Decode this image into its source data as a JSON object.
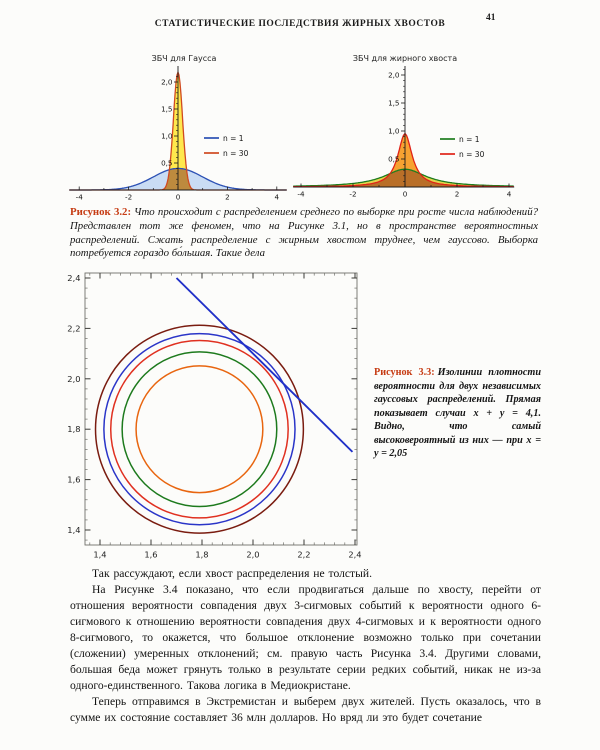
{
  "page": {
    "header": "СТАТИСТИЧЕСКИЕ ПОСЛЕДСТВИЯ ЖИРНЫХ ХВОСТОВ",
    "page_number": "41"
  },
  "accent_color": "#c63c14",
  "fig32": {
    "label": "Рисунок 3.2:",
    "caption": "Что происходит с распределением среднего по выборке при росте числа наблюдений? Представлен тот же феномен, что на Рисунке 3.1, но в пространстве вероятностных распределений. Сжать распределение с жирным хвостом труднее, чем гауссово. Выборка потребуется гораздо бо́льшая. Такие дела"
  },
  "fig33": {
    "label": "Рисунок 3.3:",
    "caption": "Изолинии плотности вероятности для двух независимых гауссовых распределений. Прямая показывает случаи x + y = 4,1. Видно, что самый высоковероятный из них — при x = y = 2,05"
  },
  "body": {
    "p1": "Так рассуждают, если хвост распределения не толстый.",
    "p2": "На Рисунке 3.4 показано, что если продвигаться дальше по хвосту, перейти от отношения вероятности совпадения двух 3-сигмовых событий к вероятности одного 6-сигмового к отношению вероятности совпадения двух 4-сигмовых и к вероятности одного 8-сигмового, то окажется, что большое отклонение возможно только при сочетании (сложении) умеренных отклонений; см. правую часть Рисунка 3.4. Другими словами, большая беда может грянуть только в результате серии редких событий, никак не из-за одного-единственного. Такова логика в Медиокристане.",
    "p3": "Теперь отправимся в Экстремистан и выберем двух жителей. Пусть оказалось, что в сумме их состояние составляет 36 млн долларов. Но вряд ли это будет сочетание"
  },
  "chart_data": [
    {
      "id": "gauss",
      "type": "area",
      "title": "ЗБЧ для Гаусса",
      "xlabel": "",
      "ylabel": "",
      "xlim": [
        -4.4,
        4.4
      ],
      "ylim": [
        0,
        2.3
      ],
      "x_ticks": [
        -4,
        -2,
        0,
        2,
        4
      ],
      "x_tick_labels": [
        "-4",
        "-2",
        "0",
        "2",
        "4"
      ],
      "y_ticks": [
        0.5,
        1.0,
        1.5,
        2.0
      ],
      "y_tick_labels": [
        "0,5",
        "1,0",
        "1,5",
        "2,0"
      ],
      "legend_position": "right",
      "series": [
        {
          "name": "n = 1",
          "shape": "gauss",
          "width": 1.0,
          "peak": 0.4,
          "color": "#2b50b4",
          "fill": "#c9dcf4"
        },
        {
          "name": "n = 30",
          "shape": "gauss",
          "width": 0.185,
          "peak": 2.18,
          "color": "#d04a20",
          "fill": "#ffe84d"
        }
      ],
      "overlap_fill": "#bd8a3e"
    },
    {
      "id": "fat-tail",
      "type": "area",
      "title": "ЗБЧ для жирного хвоста",
      "xlabel": "",
      "ylabel": "",
      "xlim": [
        -4.3,
        4.2
      ],
      "ylim": [
        0,
        2.2
      ],
      "x_ticks": [
        -4,
        -2,
        0,
        2,
        4
      ],
      "x_tick_labels": [
        "-4",
        "-2",
        "0",
        "2",
        "4"
      ],
      "y_ticks": [
        0.5,
        1.0,
        1.5,
        2.0
      ],
      "y_tick_labels": [
        "0,5",
        "1,0",
        "1,5",
        "2,0"
      ],
      "legend_position": "right",
      "series": [
        {
          "name": "n = 1",
          "shape": "cauchy",
          "width": 1.0,
          "peak": 0.318,
          "color": "#1e7d1e",
          "fill": "#e2d44c"
        },
        {
          "name": "n = 30",
          "shape": "cauchy",
          "width": 0.335,
          "peak": 0.95,
          "color": "#e02317",
          "fill": "#f7a231"
        }
      ],
      "overlap_fill": "#b96f28"
    },
    {
      "id": "isodensity-contours",
      "type": "line",
      "subtype": "contour",
      "title": "",
      "xlim": [
        1.34,
        2.42
      ],
      "ylim": [
        1.34,
        2.42
      ],
      "x_ticks": [
        1.4,
        1.6,
        1.8,
        2.0,
        2.2,
        2.4
      ],
      "x_tick_labels": [
        "1,4",
        "1,6",
        "1,8",
        "2,0",
        "2,2",
        "2,4"
      ],
      "y_ticks": [
        1.4,
        1.6,
        1.8,
        2.0,
        2.2,
        2.4
      ],
      "y_tick_labels": [
        "1,4",
        "1,6",
        "1,8",
        "2,0",
        "2,2",
        "2,4"
      ],
      "grid": false,
      "center": [
        1.79,
        1.8
      ],
      "circles": [
        {
          "r": 0.25,
          "color": "#e8650f"
        },
        {
          "r": 0.305,
          "color": "#1d7a1d"
        },
        {
          "r": 0.35,
          "color": "#e03020"
        },
        {
          "r": 0.377,
          "color": "#2a35c8"
        },
        {
          "r": 0.41,
          "color": "#7a1c10"
        }
      ],
      "line": {
        "from": [
          1.7,
          2.4
        ],
        "to": [
          2.39,
          1.71
        ],
        "color": "#2030c8",
        "equation": "x + y = 4,1"
      }
    }
  ]
}
